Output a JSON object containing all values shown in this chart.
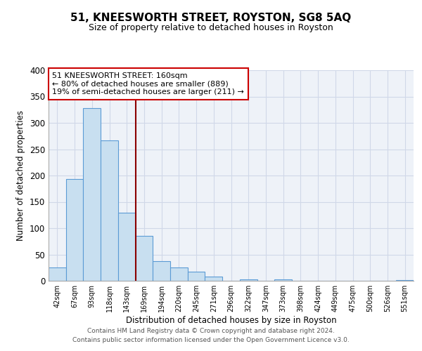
{
  "title": "51, KNEESWORTH STREET, ROYSTON, SG8 5AQ",
  "subtitle": "Size of property relative to detached houses in Royston",
  "xlabel": "Distribution of detached houses by size in Royston",
  "ylabel": "Number of detached properties",
  "bar_values": [
    25,
    193,
    328,
    267,
    130,
    86,
    38,
    25,
    18,
    8,
    0,
    3,
    0,
    3,
    0,
    0,
    0,
    0,
    0,
    0,
    2
  ],
  "bar_labels": [
    "42sqm",
    "67sqm",
    "93sqm",
    "118sqm",
    "143sqm",
    "169sqm",
    "194sqm",
    "220sqm",
    "245sqm",
    "271sqm",
    "296sqm",
    "322sqm",
    "347sqm",
    "373sqm",
    "398sqm",
    "424sqm",
    "449sqm",
    "475sqm",
    "500sqm",
    "526sqm",
    "551sqm"
  ],
  "bar_color": "#c8dff0",
  "bar_edge_color": "#5b9bd5",
  "highlight_line_color": "#8b0000",
  "annotation_text": "51 KNEESWORTH STREET: 160sqm\n← 80% of detached houses are smaller (889)\n19% of semi-detached houses are larger (211) →",
  "annotation_box_color": "white",
  "annotation_box_edge": "#cc0000",
  "ylim": [
    0,
    400
  ],
  "yticks": [
    0,
    50,
    100,
    150,
    200,
    250,
    300,
    350,
    400
  ],
  "grid_color": "#d0d8e8",
  "bg_color": "#eef2f8",
  "footer1": "Contains HM Land Registry data © Crown copyright and database right 2024.",
  "footer2": "Contains public sector information licensed under the Open Government Licence v3.0."
}
